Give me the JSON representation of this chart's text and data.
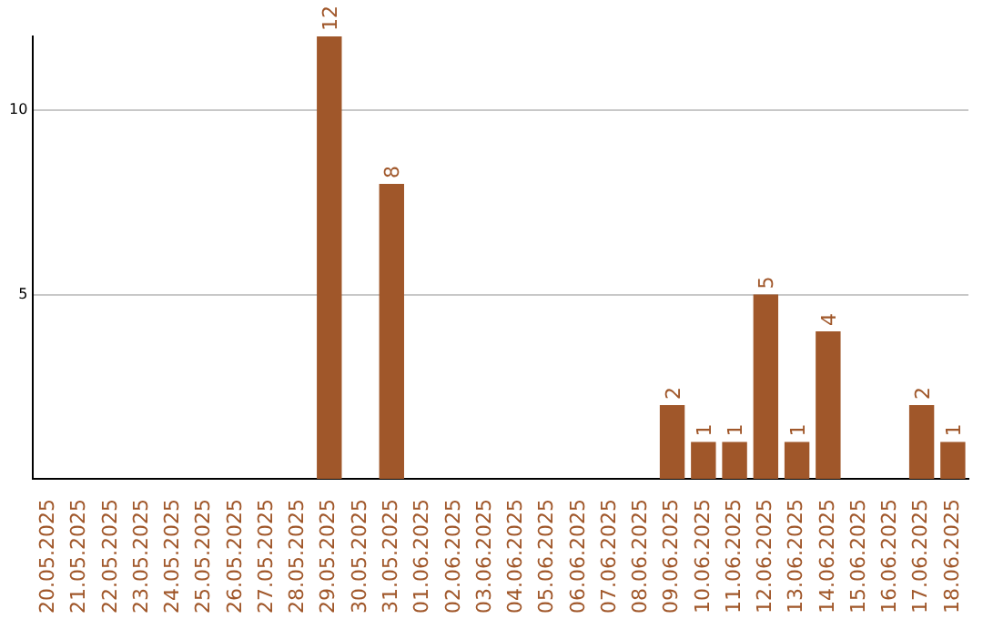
{
  "chart_data": {
    "type": "bar",
    "categories": [
      "20.05.2025",
      "21.05.2025",
      "22.05.2025",
      "23.05.2025",
      "24.05.2025",
      "25.05.2025",
      "26.05.2025",
      "27.05.2025",
      "28.05.2025",
      "29.05.2025",
      "30.05.2025",
      "31.05.2025",
      "01.06.2025",
      "02.06.2025",
      "03.06.2025",
      "04.06.2025",
      "05.06.2025",
      "06.06.2025",
      "07.06.2025",
      "08.06.2025",
      "09.06.2025",
      "10.06.2025",
      "11.06.2025",
      "12.06.2025",
      "13.06.2025",
      "14.06.2025",
      "15.06.2025",
      "16.06.2025",
      "17.06.2025",
      "18.06.2025"
    ],
    "values": [
      0,
      0,
      0,
      0,
      0,
      0,
      0,
      0,
      0,
      12,
      0,
      8,
      0,
      0,
      0,
      0,
      0,
      0,
      0,
      0,
      2,
      1,
      1,
      5,
      1,
      4,
      0,
      0,
      2,
      1
    ],
    "value_labels": [
      null,
      null,
      null,
      null,
      null,
      null,
      null,
      null,
      null,
      "12",
      null,
      "8",
      null,
      null,
      null,
      null,
      null,
      null,
      null,
      null,
      "2",
      "1",
      "1",
      "5",
      "1",
      "4",
      null,
      null,
      "2",
      "1"
    ],
    "color": "#a0572a",
    "ylim": [
      0,
      12
    ],
    "yticks": [
      5,
      10
    ],
    "grid": "y",
    "legend": false
  }
}
